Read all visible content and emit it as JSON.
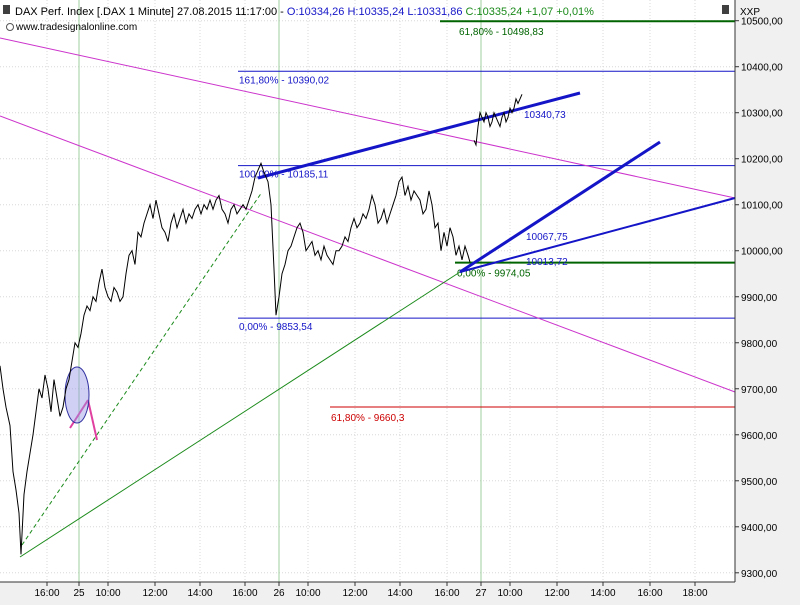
{
  "header": {
    "title": "DAX Perf. Index [.DAX  1 Minute] 27.08.2015 11:17:00 - ",
    "ohlc": "O:10334,26 H:10335,24 L:10331,86",
    "change": "C:10335,24 +1,07 +0,01%",
    "watermark": "www.tradesignalonline.com",
    "symbol_label": "XXP"
  },
  "chart_data": {
    "type": "line",
    "title": "DAX Perf. Index [.DAX  1 Minute]",
    "y_range": [
      9280,
      10545
    ],
    "y_ticks": [
      9300,
      9400,
      9500,
      9600,
      9700,
      9800,
      9900,
      10000,
      10100,
      10200,
      10300,
      10400,
      10500
    ],
    "y_tick_labels": [
      "9300,00",
      "9400,00",
      "9500,00",
      "9600,00",
      "9700,00",
      "9800,00",
      "9900,00",
      "10000,00",
      "10100,00",
      "10200,00",
      "10300,00",
      "10400,00",
      "10500,00"
    ],
    "x_ticks": [
      "16:00",
      "25",
      "10:00",
      "12:00",
      "14:00",
      "16:00",
      "26",
      "10:00",
      "12:00",
      "14:00",
      "16:00",
      "27",
      "10:00",
      "12:00",
      "14:00",
      "16:00",
      "18:00"
    ],
    "series": [
      {
        "values": [
          [
            0,
            9750
          ],
          [
            3,
            9700
          ],
          [
            6,
            9660
          ],
          [
            10,
            9620
          ],
          [
            13,
            9520
          ],
          [
            16,
            9480
          ],
          [
            19,
            9430
          ],
          [
            21,
            9340
          ],
          [
            24,
            9470
          ],
          [
            27,
            9520
          ],
          [
            30,
            9560
          ],
          [
            33,
            9600
          ],
          [
            36,
            9650
          ],
          [
            39,
            9700
          ],
          [
            42,
            9680
          ],
          [
            45,
            9730
          ],
          [
            48,
            9700
          ],
          [
            51,
            9650
          ],
          [
            54,
            9720
          ],
          [
            57,
            9680
          ],
          [
            60,
            9640
          ],
          [
            63,
            9660
          ],
          [
            66,
            9700
          ],
          [
            69,
            9720
          ],
          [
            72,
            9760
          ],
          [
            75,
            9800
          ],
          [
            78,
            9790
          ],
          [
            81,
            9820
          ],
          [
            84,
            9860
          ],
          [
            87,
            9880
          ],
          [
            90,
            9870
          ],
          [
            93,
            9900
          ],
          [
            96,
            9890
          ],
          [
            99,
            9930
          ],
          [
            102,
            9960
          ],
          [
            105,
            9920
          ],
          [
            108,
            9900
          ],
          [
            111,
            9890
          ],
          [
            114,
            9920
          ],
          [
            117,
            9910
          ],
          [
            120,
            9890
          ],
          [
            123,
            9900
          ],
          [
            126,
            9950
          ],
          [
            129,
            9990
          ],
          [
            132,
            10000
          ],
          [
            135,
            9970
          ],
          [
            138,
            10040
          ],
          [
            141,
            10030
          ],
          [
            144,
            10060
          ],
          [
            147,
            10080
          ],
          [
            150,
            10100
          ],
          [
            153,
            10070
          ],
          [
            156,
            10110
          ],
          [
            159,
            10080
          ],
          [
            162,
            10050
          ],
          [
            165,
            10040
          ],
          [
            168,
            10020
          ],
          [
            171,
            10060
          ],
          [
            174,
            10080
          ],
          [
            177,
            10050
          ],
          [
            180,
            10070
          ],
          [
            183,
            10090
          ],
          [
            186,
            10060
          ],
          [
            189,
            10080
          ],
          [
            192,
            10070
          ],
          [
            195,
            10090
          ],
          [
            198,
            10100
          ],
          [
            201,
            10080
          ],
          [
            204,
            10100
          ],
          [
            207,
            10090
          ],
          [
            210,
            10110
          ],
          [
            213,
            10090
          ],
          [
            216,
            10110
          ],
          [
            219,
            10120
          ],
          [
            222,
            10090
          ],
          [
            225,
            10080
          ],
          [
            228,
            10060
          ],
          [
            231,
            10090
          ],
          [
            234,
            10100
          ],
          [
            237,
            10080
          ],
          [
            240,
            10090
          ],
          [
            243,
            10100
          ],
          [
            246,
            10090
          ],
          [
            249,
            10110
          ],
          [
            252,
            10130
          ],
          [
            255,
            10160
          ],
          [
            258,
            10175
          ],
          [
            261,
            10190
          ],
          [
            264,
            10170
          ],
          [
            268,
            10150
          ],
          [
            271,
            10100
          ],
          [
            274,
            9960
          ],
          [
            276,
            9860
          ],
          [
            279,
            9900
          ],
          [
            282,
            9950
          ],
          [
            285,
            9970
          ],
          [
            288,
            10000
          ],
          [
            291,
            10010
          ],
          [
            294,
            10030
          ],
          [
            297,
            10050
          ],
          [
            300,
            10060
          ],
          [
            303,
            10040
          ],
          [
            306,
            10000
          ],
          [
            309,
            10010
          ],
          [
            312,
            10020
          ],
          [
            315,
            9990
          ],
          [
            318,
            10000
          ],
          [
            321,
            9980
          ],
          [
            324,
            10010
          ],
          [
            327,
            9990
          ],
          [
            330,
            9980
          ],
          [
            333,
            9970
          ],
          [
            336,
            10000
          ],
          [
            339,
            10000
          ],
          [
            342,
            10010
          ],
          [
            345,
            10030
          ],
          [
            348,
            10020
          ],
          [
            351,
            10050
          ],
          [
            354,
            10070
          ],
          [
            357,
            10050
          ],
          [
            360,
            10060
          ],
          [
            363,
            10080
          ],
          [
            366,
            10070
          ],
          [
            369,
            10090
          ],
          [
            372,
            10120
          ],
          [
            375,
            10100
          ],
          [
            378,
            10060
          ],
          [
            381,
            10070
          ],
          [
            384,
            10090
          ],
          [
            387,
            10060
          ],
          [
            390,
            10080
          ],
          [
            393,
            10100
          ],
          [
            396,
            10120
          ],
          [
            399,
            10150
          ],
          [
            402,
            10160
          ],
          [
            405,
            10120
          ],
          [
            408,
            10140
          ],
          [
            411,
            10110
          ],
          [
            414,
            10130
          ],
          [
            417,
            10120
          ],
          [
            420,
            10110
          ],
          [
            423,
            10080
          ],
          [
            426,
            10090
          ],
          [
            429,
            10130
          ],
          [
            432,
            10100
          ],
          [
            435,
            10050
          ],
          [
            438,
            10060
          ],
          [
            441,
            10000
          ],
          [
            444,
            10040
          ],
          [
            447,
            10010
          ],
          [
            450,
            10050
          ],
          [
            453,
            10030
          ],
          [
            456,
            9990
          ],
          [
            459,
            10010
          ],
          [
            462,
            9980
          ],
          [
            465,
            10010
          ],
          [
            468,
            9990
          ],
          [
            470,
            9975
          ],
          [
            474,
            10240
          ],
          [
            476,
            10230
          ],
          [
            478,
            10270
          ],
          [
            480,
            10300
          ],
          [
            482,
            10290
          ],
          [
            484,
            10280
          ],
          [
            486,
            10300
          ],
          [
            488,
            10290
          ],
          [
            490,
            10270
          ],
          [
            492,
            10280
          ],
          [
            494,
            10300
          ],
          [
            496,
            10290
          ],
          [
            498,
            10280
          ],
          [
            500,
            10270
          ],
          [
            502,
            10290
          ],
          [
            504,
            10300
          ],
          [
            506,
            10280
          ],
          [
            508,
            10290
          ],
          [
            510,
            10310
          ],
          [
            512,
            10300
          ],
          [
            514,
            10310
          ],
          [
            516,
            10330
          ],
          [
            518,
            10320
          ],
          [
            520,
            10330
          ],
          [
            522,
            10340
          ]
        ]
      }
    ],
    "horizontal_levels": [
      {
        "value": 10498.83,
        "label": "61,80% - 10498,83",
        "color": "#006400"
      },
      {
        "value": 10390.02,
        "label": "161,80% - 10390,02",
        "color": "#1515c8"
      },
      {
        "value": 10185.11,
        "label": "100,00% - 10185,11",
        "color": "#1515c8"
      },
      {
        "value": 9853.54,
        "label": "0,00% - 9853,54",
        "color": "#1515c8"
      },
      {
        "value": 9974.05,
        "label": "0,00% - 9974,05",
        "color": "#006400"
      },
      {
        "value": 9660.3,
        "label": "61,80% - 9660,3",
        "color": "#cc0000"
      }
    ],
    "annotations": [
      {
        "label": "10340,73",
        "color": "#1515c8"
      },
      {
        "label": "10067,75",
        "color": "#1515c8"
      },
      {
        "label": "10013,72",
        "color": "#1515c8"
      }
    ],
    "colors": {
      "price": "#000000",
      "blue_lines": "#1515c8",
      "magenta_lines": "#cc33cc",
      "green_lines": "#1a8a1a",
      "grid": "#d8d8d8",
      "background": "#ffffff",
      "panel": "#f0f0f0"
    }
  }
}
